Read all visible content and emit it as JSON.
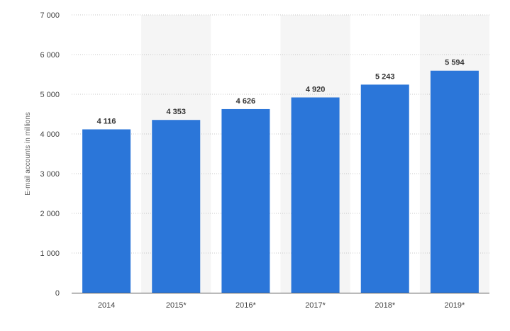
{
  "chart_data": {
    "type": "bar",
    "categories": [
      "2014",
      "2015*",
      "2016*",
      "2017*",
      "2018*",
      "2019*"
    ],
    "values": [
      4116,
      4353,
      4626,
      4920,
      5243,
      5594
    ],
    "data_labels": [
      "4 116",
      "4 353",
      "4 626",
      "4 920",
      "5 243",
      "5 594"
    ],
    "title": "",
    "xlabel": "",
    "ylabel": "E-mail accounts in millions",
    "ylim": [
      0,
      7000
    ],
    "yticks": [
      0,
      1000,
      2000,
      3000,
      4000,
      5000,
      6000,
      7000
    ],
    "ytick_labels": [
      "0",
      "1 000",
      "2 000",
      "3 000",
      "4 000",
      "5 000",
      "6 000",
      "7 000"
    ],
    "grid": true,
    "grid_style": "dotted",
    "alternating_column_shading": true,
    "colors": {
      "bar": "#2b76d9",
      "band": "#f5f5f5",
      "grid": "#c8c8c8",
      "axis": "#555555"
    }
  }
}
